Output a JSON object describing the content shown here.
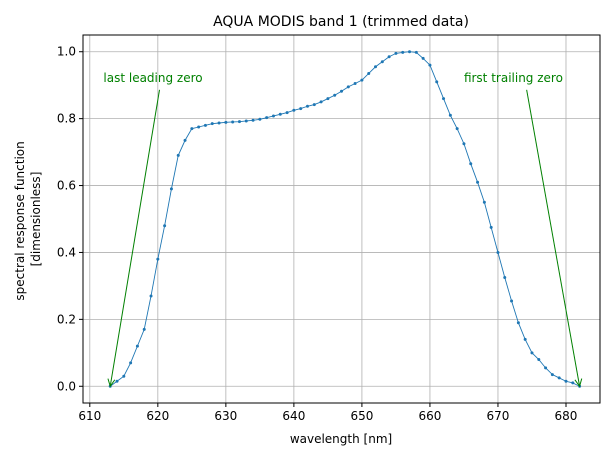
{
  "chart_data": {
    "type": "line",
    "title": "AQUA MODIS band 1 (trimmed data)",
    "xlabel": "wavelength [nm]",
    "ylabel_lines": [
      "spectral response function",
      "[dimensionless]"
    ],
    "xlim": [
      609.0,
      685.0
    ],
    "ylim": [
      -0.05,
      1.05
    ],
    "xticks": [
      610,
      620,
      630,
      640,
      650,
      660,
      670,
      680
    ],
    "yticks": [
      0.0,
      0.2,
      0.4,
      0.6,
      0.8,
      1.0
    ],
    "xtick_labels": [
      "610",
      "620",
      "630",
      "640",
      "650",
      "660",
      "670",
      "680"
    ],
    "ytick_labels": [
      "0.0",
      "0.2",
      "0.4",
      "0.6",
      "0.8",
      "1.0"
    ],
    "grid": true,
    "series_color": "#1f77b4",
    "x": [
      613,
      614,
      615,
      616,
      617,
      618,
      619,
      620,
      621,
      622,
      623,
      624,
      625,
      626,
      627,
      628,
      629,
      630,
      631,
      632,
      633,
      634,
      635,
      636,
      637,
      638,
      639,
      640,
      641,
      642,
      643,
      644,
      645,
      646,
      647,
      648,
      649,
      650,
      651,
      652,
      653,
      654,
      655,
      656,
      657,
      658,
      659,
      660,
      661,
      662,
      663,
      664,
      665,
      666,
      667,
      668,
      669,
      670,
      671,
      672,
      673,
      674,
      675,
      676,
      677,
      678,
      679,
      680,
      681,
      682
    ],
    "y": [
      0.0,
      0.015,
      0.03,
      0.07,
      0.12,
      0.17,
      0.27,
      0.38,
      0.48,
      0.59,
      0.69,
      0.735,
      0.77,
      0.775,
      0.78,
      0.785,
      0.787,
      0.789,
      0.79,
      0.791,
      0.793,
      0.795,
      0.798,
      0.803,
      0.808,
      0.813,
      0.818,
      0.825,
      0.83,
      0.837,
      0.842,
      0.85,
      0.86,
      0.87,
      0.882,
      0.895,
      0.905,
      0.915,
      0.935,
      0.955,
      0.97,
      0.985,
      0.995,
      0.998,
      1.0,
      0.998,
      0.98,
      0.96,
      0.91,
      0.86,
      0.81,
      0.77,
      0.725,
      0.665,
      0.61,
      0.55,
      0.475,
      0.4,
      0.325,
      0.255,
      0.19,
      0.14,
      0.1,
      0.08,
      0.055,
      0.035,
      0.025,
      0.015,
      0.01,
      0.0
    ],
    "annotations": [
      {
        "text": "last leading zero",
        "text_xy": [
          612.0,
          0.91
        ],
        "point_xy": [
          613.0,
          0.0
        ],
        "color": "#008000"
      },
      {
        "text": "first trailing zero",
        "text_xy": [
          665.0,
          0.91
        ],
        "point_xy": [
          682.0,
          0.0
        ],
        "color": "#008000"
      }
    ]
  }
}
